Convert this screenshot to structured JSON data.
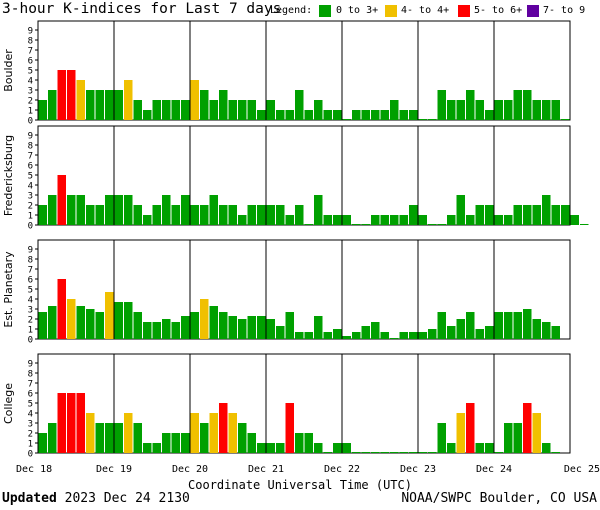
{
  "header": {
    "title": "3-hour K-indices for Last 7 days",
    "legend_label": "Legend:",
    "legend": [
      {
        "label": "0 to 3+",
        "color": "#00a000"
      },
      {
        "label": "4- to 4+",
        "color": "#f0c000"
      },
      {
        "label": "5- to 6+",
        "color": "#ff0000"
      },
      {
        "label": "7- to 9",
        "color": "#6000a0"
      }
    ]
  },
  "footer": {
    "updated_label": "Updated",
    "updated_value": "2023 Dec 24 2130",
    "credit": "NOAA/SWPC Boulder, CO USA"
  },
  "chart_data": {
    "type": "bar",
    "title": "3-hour K-indices for Last 7 days",
    "xlabel": "Coordinate Universal Time (UTC)",
    "x_ticks": [
      "Dec 18",
      "Dec 19",
      "Dec 20",
      "Dec 21",
      "Dec 22",
      "Dec 23",
      "Dec 24",
      "Dec 25"
    ],
    "ylim": [
      0,
      9
    ],
    "y_ticks": [
      0,
      1,
      2,
      3,
      4,
      5,
      6,
      7,
      8,
      9
    ],
    "color_scale": [
      {
        "range": "0 to 3+",
        "color": "#00a000"
      },
      {
        "range": "4- to 4+",
        "color": "#f0c000"
      },
      {
        "range": "5- to 6+",
        "color": "#ff0000"
      },
      {
        "range": "7- to 9",
        "color": "#6000a0"
      }
    ],
    "intervals_per_day": 8,
    "panels": [
      {
        "name": "Boulder",
        "values": [
          2,
          3,
          5,
          5,
          4,
          3,
          3,
          3,
          3,
          4,
          2,
          1,
          2,
          2,
          2,
          2,
          4,
          3,
          2,
          3,
          2,
          2,
          2,
          1,
          2,
          1,
          1,
          3,
          1,
          2,
          1,
          1,
          0,
          1,
          1,
          1,
          1,
          2,
          1,
          1,
          0,
          0,
          3,
          2,
          2,
          3,
          2,
          1,
          2,
          2,
          3,
          3,
          2,
          2,
          2,
          0
        ]
      },
      {
        "name": "Fredericksburg",
        "values": [
          2,
          3,
          5,
          3,
          3,
          2,
          2,
          3,
          3,
          3,
          2,
          1,
          2,
          3,
          2,
          3,
          2,
          2,
          3,
          2,
          2,
          1,
          2,
          2,
          2,
          2,
          1,
          2,
          0,
          3,
          1,
          1,
          1,
          0,
          0,
          1,
          1,
          1,
          1,
          2,
          1,
          0,
          0,
          1,
          3,
          1,
          2,
          2,
          1,
          1,
          2,
          2,
          2,
          3,
          2,
          2,
          1,
          0
        ]
      },
      {
        "name": "Est. Planetary",
        "values": [
          2.7,
          3.3,
          6,
          4,
          3.3,
          3,
          2.7,
          4.7,
          3.7,
          3.7,
          2.7,
          1.7,
          1.7,
          2,
          1.7,
          2.3,
          2.7,
          4,
          3.3,
          2.7,
          2.3,
          2,
          2.3,
          2.3,
          2,
          1.3,
          2.7,
          0.7,
          0.7,
          2.3,
          0.7,
          1,
          0.3,
          0.7,
          1.3,
          1.7,
          0.7,
          0,
          0.7,
          0.7,
          0.7,
          1,
          2.7,
          1.3,
          2,
          2.7,
          1,
          1.3,
          2.7,
          2.7,
          2.7,
          3,
          2,
          1.7,
          1.3
        ]
      },
      {
        "name": "College",
        "values": [
          2,
          3,
          6,
          6,
          6,
          4,
          3,
          3,
          3,
          4,
          3,
          1,
          1,
          2,
          2,
          2,
          4,
          3,
          4,
          5,
          4,
          3,
          2,
          1,
          1,
          1,
          5,
          2,
          2,
          1,
          0,
          1,
          1,
          0,
          0,
          0,
          0,
          0,
          0,
          0,
          0,
          0,
          3,
          1,
          4,
          5,
          1,
          1,
          0,
          3,
          3,
          5,
          4,
          1,
          0
        ]
      }
    ]
  }
}
